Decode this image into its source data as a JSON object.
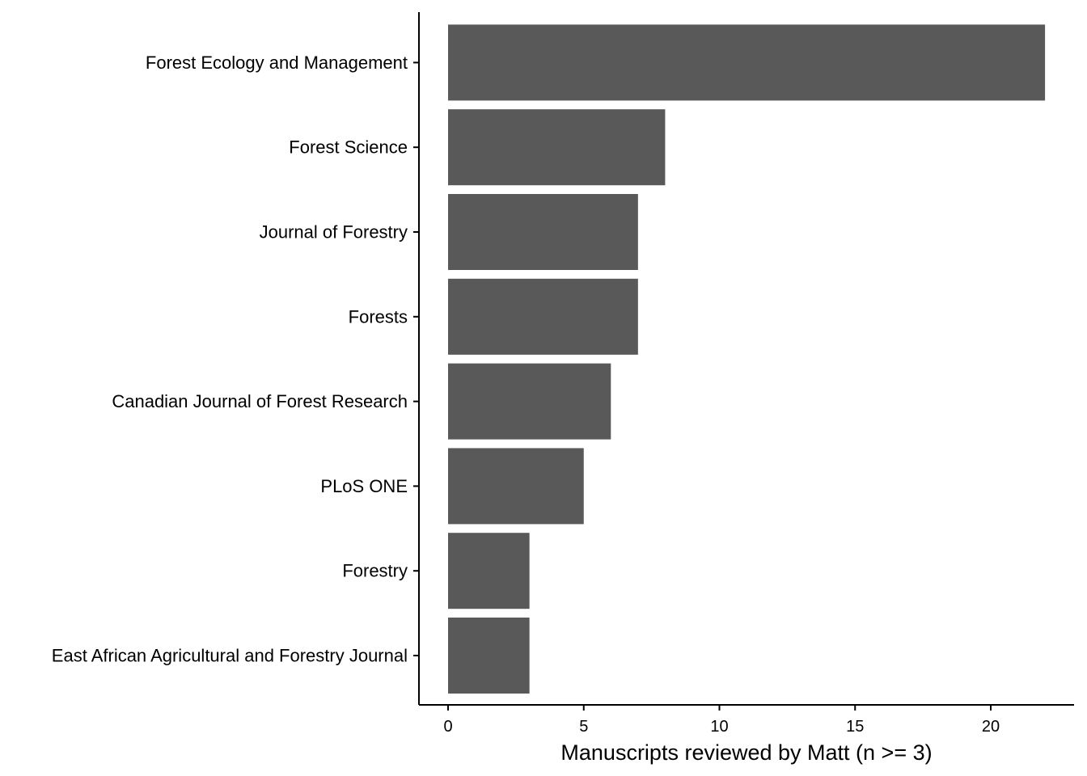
{
  "chart_data": {
    "type": "bar",
    "orientation": "horizontal",
    "categories": [
      "Forest Ecology and Management",
      "Forest Science",
      "Journal of Forestry",
      "Forests",
      "Canadian Journal of Forest Research",
      "PLoS ONE",
      "Forestry",
      "East African Agricultural and Forestry Journal"
    ],
    "values": [
      22,
      8,
      7,
      7,
      6,
      5,
      3,
      3
    ],
    "title": "",
    "xlabel": "Manuscripts reviewed by Matt (n >= 3)",
    "ylabel": "",
    "xlim": [
      0,
      23
    ],
    "xticks": [
      0,
      5,
      10,
      15,
      20
    ],
    "xtick_labels": [
      "0",
      "5",
      "10",
      "15",
      "20"
    ],
    "grid": false,
    "bar_color": "#595959",
    "axis_color": "#000000"
  }
}
